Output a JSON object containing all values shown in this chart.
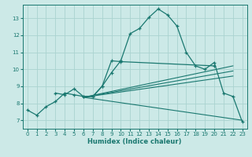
{
  "xlabel": "Humidex (Indice chaleur)",
  "xlim": [
    -0.5,
    23.5
  ],
  "ylim": [
    6.5,
    13.8
  ],
  "xticks": [
    0,
    1,
    2,
    3,
    4,
    5,
    6,
    7,
    8,
    9,
    10,
    11,
    12,
    13,
    14,
    15,
    16,
    17,
    18,
    19,
    20,
    21,
    22,
    23
  ],
  "yticks": [
    7,
    8,
    9,
    10,
    11,
    12,
    13
  ],
  "background_color": "#cce9e7",
  "grid_color": "#aad3d0",
  "line_color": "#1a7870",
  "main_series": [
    [
      0,
      7.6
    ],
    [
      1,
      7.3
    ],
    [
      2,
      7.8
    ],
    [
      3,
      8.1
    ],
    [
      4,
      8.6
    ],
    [
      5,
      8.5
    ],
    [
      6,
      8.4
    ],
    [
      7,
      8.4
    ],
    [
      8,
      9.0
    ],
    [
      9,
      9.8
    ],
    [
      10,
      10.5
    ],
    [
      11,
      12.1
    ],
    [
      12,
      12.4
    ],
    [
      13,
      13.05
    ],
    [
      14,
      13.55
    ],
    [
      15,
      13.2
    ],
    [
      16,
      12.55
    ],
    [
      17,
      11.0
    ],
    [
      18,
      10.2
    ],
    [
      19,
      10.0
    ],
    [
      20,
      10.4
    ],
    [
      21,
      8.6
    ],
    [
      22,
      8.4
    ],
    [
      23,
      6.9
    ]
  ],
  "line2": [
    [
      3,
      8.6
    ],
    [
      4,
      8.5
    ],
    [
      5,
      8.85
    ],
    [
      6,
      8.4
    ],
    [
      7,
      8.4
    ],
    [
      8,
      9.0
    ],
    [
      9,
      10.5
    ],
    [
      10,
      10.45
    ],
    [
      20,
      10.2
    ]
  ],
  "straight_lines": [
    [
      [
        6,
        8.35
      ],
      [
        22,
        10.2
      ]
    ],
    [
      [
        6,
        8.35
      ],
      [
        22,
        9.9
      ]
    ],
    [
      [
        6,
        8.35
      ],
      [
        22,
        9.6
      ]
    ],
    [
      [
        6,
        8.35
      ],
      [
        23,
        7.0
      ]
    ]
  ]
}
